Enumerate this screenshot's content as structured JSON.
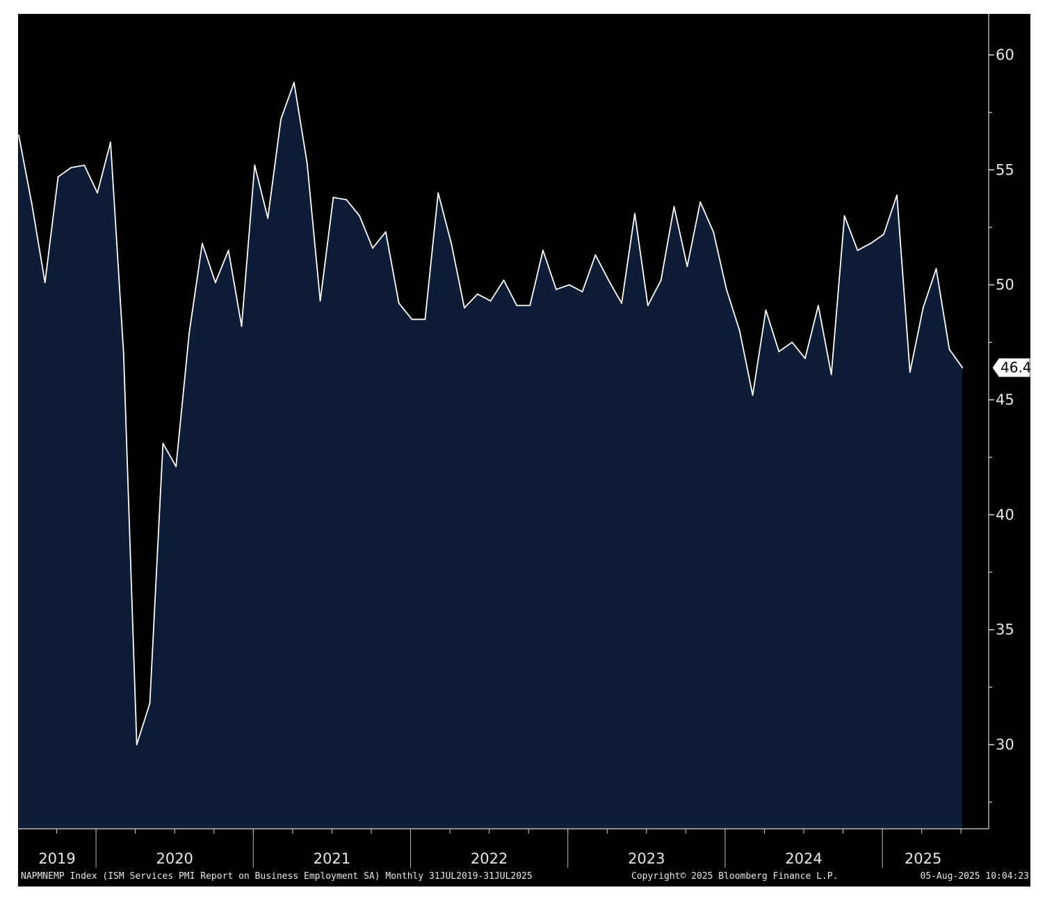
{
  "chart_data": {
    "type": "area",
    "x": [
      "2019-07",
      "2019-08",
      "2019-09",
      "2019-10",
      "2019-11",
      "2019-12",
      "2020-01",
      "2020-02",
      "2020-03",
      "2020-04",
      "2020-05",
      "2020-06",
      "2020-07",
      "2020-08",
      "2020-09",
      "2020-10",
      "2020-11",
      "2020-12",
      "2021-01",
      "2021-02",
      "2021-03",
      "2021-04",
      "2021-05",
      "2021-06",
      "2021-07",
      "2021-08",
      "2021-09",
      "2021-10",
      "2021-11",
      "2021-12",
      "2022-01",
      "2022-02",
      "2022-03",
      "2022-04",
      "2022-05",
      "2022-06",
      "2022-07",
      "2022-08",
      "2022-09",
      "2022-10",
      "2022-11",
      "2022-12",
      "2023-01",
      "2023-02",
      "2023-03",
      "2023-04",
      "2023-05",
      "2023-06",
      "2023-07",
      "2023-08",
      "2023-09",
      "2023-10",
      "2023-11",
      "2023-12",
      "2024-01",
      "2024-02",
      "2024-03",
      "2024-04",
      "2024-05",
      "2024-06",
      "2024-07",
      "2024-08",
      "2024-09",
      "2024-10",
      "2024-11",
      "2024-12",
      "2025-01",
      "2025-02",
      "2025-03",
      "2025-04",
      "2025-05",
      "2025-06",
      "2025-07"
    ],
    "series": [
      {
        "values": [
          56.5,
          53.5,
          50.1,
          54.7,
          55.1,
          55.2,
          54.0,
          56.2,
          47.0,
          30.0,
          31.8,
          43.1,
          42.1,
          47.9,
          51.8,
          50.1,
          51.5,
          48.2,
          55.2,
          52.9,
          57.2,
          58.8,
          55.3,
          49.3,
          53.8,
          53.7,
          53.0,
          51.6,
          52.3,
          49.2,
          48.5,
          48.5,
          54.0,
          51.8,
          49.0,
          49.6,
          49.3,
          50.2,
          49.1,
          49.1,
          51.5,
          49.8,
          50.0,
          49.7,
          51.3,
          50.2,
          49.2,
          53.1,
          49.1,
          50.2,
          53.4,
          50.8,
          53.6,
          52.3,
          49.8,
          48.0,
          45.2,
          48.9,
          47.1,
          47.5,
          46.8,
          49.1,
          46.1,
          53.0,
          51.5,
          51.8,
          52.2,
          53.9,
          46.2,
          49.0,
          50.7,
          47.2,
          46.4
        ]
      }
    ],
    "ylim": [
      26.5,
      62
    ],
    "yticks": [
      30,
      35,
      40,
      45,
      50,
      55,
      60
    ],
    "year_labels": [
      "2019",
      "2020",
      "2021",
      "2022",
      "2023",
      "2024",
      "2025"
    ],
    "last_value_label": "46.4",
    "grid": false,
    "colors": {
      "background": "#000000",
      "area_fill": "#0e1d36",
      "line": "#ffffff"
    }
  },
  "footer": {
    "left": "NAPMNEMP Index (ISM Services PMI Report on Business Employment SA)  Monthly 31JUL2019-31JUL2025",
    "center": "Copyright© 2025 Bloomberg Finance L.P.",
    "right": "05-Aug-2025 10:04:23"
  }
}
